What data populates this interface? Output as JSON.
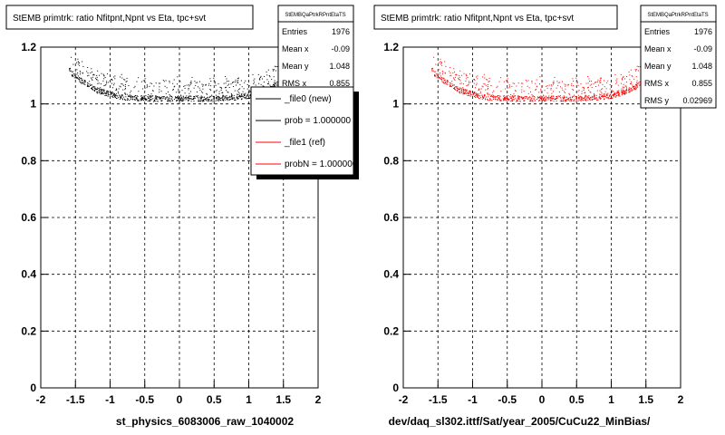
{
  "chart_data": [
    {
      "type": "scatter",
      "title": "StEMB primtrk: ratio Nfitpnt,Npnt vs Eta, tpc+svt",
      "xlabel": "st_physics_6083006_raw_1040002",
      "ylabel": "",
      "xlim": [
        -2,
        2
      ],
      "ylim": [
        0,
        1.2
      ],
      "xticks": [
        "-2",
        "-1.5",
        "-1",
        "-0.5",
        "0",
        "0.5",
        "1",
        "1.5",
        "2"
      ],
      "yticks": [
        "0",
        "0.2",
        "0.4",
        "0.6",
        "0.8",
        "1",
        "1.2"
      ],
      "grid": true,
      "marker_color": "#000000",
      "stats": {
        "name": "StEMBQaPtrkRPntEtaTS",
        "rows": [
          {
            "label": "Entries",
            "value": "1976"
          },
          {
            "label": "Mean x",
            "value": "-0.09"
          },
          {
            "label": "Mean y",
            "value": "1.048"
          },
          {
            "label": "RMS x",
            "value": "0.855"
          }
        ]
      },
      "legend": {
        "position": "top-right",
        "entries": [
          {
            "label": "_file0 (new)",
            "color": "#000000"
          },
          {
            "label": "prob = 1.000000",
            "color": "#000000"
          },
          {
            "label": "_file1 (ref)",
            "color": "#ff0000"
          },
          {
            "label": "probN = 1.000000",
            "color": "#ff0000"
          }
        ]
      },
      "series": [
        {
          "x": [
            -1.6,
            -1.5,
            -1.4,
            -1.3,
            -1.2,
            -1.0,
            -0.8,
            -0.5,
            0.0,
            0.5,
            0.8,
            1.0,
            1.2,
            1.4,
            1.5
          ],
          "y": [
            1.115,
            1.1,
            1.08,
            1.065,
            1.05,
            1.035,
            1.025,
            1.02,
            1.02,
            1.02,
            1.025,
            1.03,
            1.045,
            1.07,
            1.09
          ]
        }
      ]
    },
    {
      "type": "scatter",
      "title": "StEMB primtrk: ratio Nfitpnt,Npnt vs Eta, tpc+svt",
      "xlabel": "dev/daq_sl302.ittf/Sat/year_2005/CuCu22_MinBias/",
      "ylabel": "",
      "xlim": [
        -2,
        2
      ],
      "ylim": [
        0,
        1.2
      ],
      "xticks": [
        "-2",
        "-1.5",
        "-1",
        "-0.5",
        "0",
        "0.5",
        "1",
        "1.5",
        "2"
      ],
      "yticks": [
        "0",
        "0.2",
        "0.4",
        "0.6",
        "0.8",
        "1",
        "1.2"
      ],
      "grid": true,
      "marker_color": "#ff0000",
      "stats": {
        "name": "StEMBQaPtrkRPntEtaTS",
        "rows": [
          {
            "label": "Entries",
            "value": "1976"
          },
          {
            "label": "Mean x",
            "value": "-0.09"
          },
          {
            "label": "Mean y",
            "value": "1.048"
          },
          {
            "label": "RMS x",
            "value": "0.855"
          },
          {
            "label": "RMS y",
            "value": "0.02969"
          }
        ]
      },
      "series": [
        {
          "x": [
            -1.6,
            -1.5,
            -1.4,
            -1.3,
            -1.2,
            -1.0,
            -0.8,
            -0.5,
            0.0,
            0.5,
            0.8,
            1.0,
            1.2,
            1.4,
            1.5
          ],
          "y": [
            1.115,
            1.1,
            1.08,
            1.065,
            1.05,
            1.035,
            1.025,
            1.02,
            1.02,
            1.02,
            1.025,
            1.03,
            1.045,
            1.07,
            1.09
          ]
        }
      ]
    }
  ]
}
